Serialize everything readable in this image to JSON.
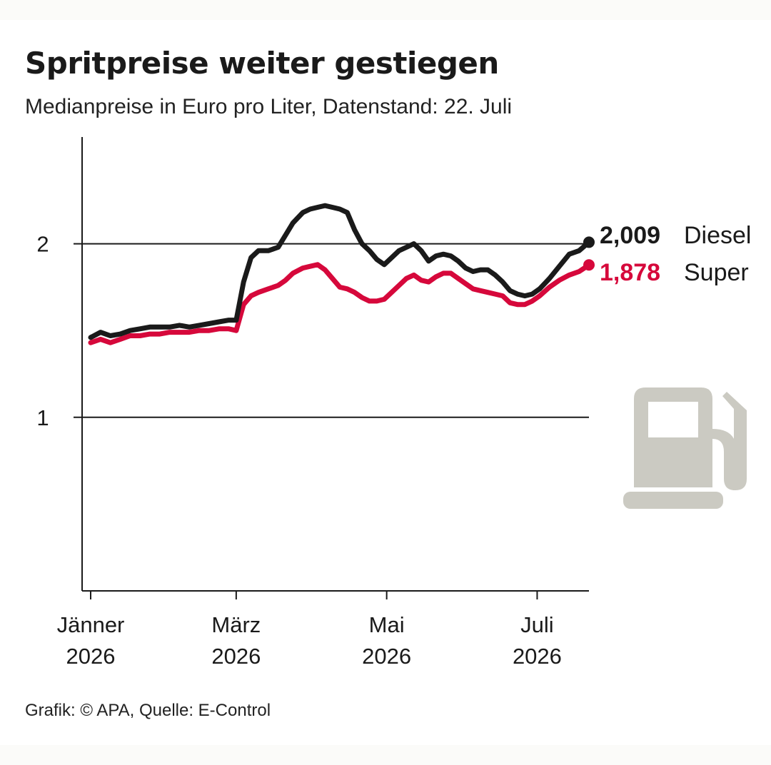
{
  "title": "Spritpreise weiter gestiegen",
  "subtitle": "Medianpreise in Euro pro Liter, Datenstand: 22. Juli",
  "source": "Grafik: © APA, Quelle: E-Control",
  "icon": "fuel-pump-icon",
  "colors": {
    "diesel": "#1a1a1a",
    "super": "#d6083b",
    "icon": "#cbcac2"
  },
  "chart_data": {
    "type": "line",
    "title": "Spritpreise weiter gestiegen",
    "subtitle": "Medianpreise in Euro pro Liter, Datenstand: 22. Juli",
    "ylim": [
      0,
      2.5
    ],
    "yticks": [
      1,
      2
    ],
    "ytick_labels": [
      "1",
      "2"
    ],
    "grid": true,
    "xtick_labels": [
      {
        "line1": "Jänner",
        "line2": "2026",
        "x": 0
      },
      {
        "line1": "März",
        "line2": "2026",
        "x": 59
      },
      {
        "line1": "Mai",
        "line2": "2026",
        "x": 120
      },
      {
        "line1": "Juli",
        "line2": "2026",
        "x": 181
      }
    ],
    "xlim": [
      0,
      202
    ],
    "x_unit": "days since 1 January 2026",
    "series": [
      {
        "name": "Diesel",
        "end_label": "2,009",
        "color": "#1a1a1a",
        "points": [
          [
            0,
            1.46
          ],
          [
            4,
            1.49
          ],
          [
            8,
            1.47
          ],
          [
            12,
            1.48
          ],
          [
            16,
            1.5
          ],
          [
            20,
            1.51
          ],
          [
            24,
            1.52
          ],
          [
            28,
            1.52
          ],
          [
            32,
            1.52
          ],
          [
            36,
            1.53
          ],
          [
            40,
            1.52
          ],
          [
            44,
            1.53
          ],
          [
            48,
            1.54
          ],
          [
            52,
            1.55
          ],
          [
            56,
            1.56
          ],
          [
            59,
            1.56
          ],
          [
            62,
            1.78
          ],
          [
            65,
            1.92
          ],
          [
            68,
            1.96
          ],
          [
            72,
            1.96
          ],
          [
            76,
            1.98
          ],
          [
            79,
            2.05
          ],
          [
            82,
            2.12
          ],
          [
            86,
            2.18
          ],
          [
            89,
            2.2
          ],
          [
            92,
            2.21
          ],
          [
            95,
            2.22
          ],
          [
            98,
            2.21
          ],
          [
            101,
            2.2
          ],
          [
            104,
            2.18
          ],
          [
            107,
            2.08
          ],
          [
            110,
            2.0
          ],
          [
            113,
            1.96
          ],
          [
            116,
            1.91
          ],
          [
            119,
            1.88
          ],
          [
            122,
            1.92
          ],
          [
            125,
            1.96
          ],
          [
            128,
            1.98
          ],
          [
            131,
            2.0
          ],
          [
            134,
            1.96
          ],
          [
            137,
            1.9
          ],
          [
            140,
            1.93
          ],
          [
            143,
            1.94
          ],
          [
            146,
            1.93
          ],
          [
            149,
            1.9
          ],
          [
            152,
            1.86
          ],
          [
            155,
            1.84
          ],
          [
            158,
            1.85
          ],
          [
            161,
            1.85
          ],
          [
            164,
            1.82
          ],
          [
            167,
            1.78
          ],
          [
            170,
            1.73
          ],
          [
            173,
            1.71
          ],
          [
            176,
            1.7
          ],
          [
            179,
            1.71
          ],
          [
            182,
            1.74
          ],
          [
            186,
            1.8
          ],
          [
            190,
            1.87
          ],
          [
            194,
            1.94
          ],
          [
            198,
            1.96
          ],
          [
            202,
            2.009
          ]
        ]
      },
      {
        "name": "Super",
        "end_label": "1,878",
        "color": "#d6083b",
        "points": [
          [
            0,
            1.43
          ],
          [
            4,
            1.45
          ],
          [
            8,
            1.43
          ],
          [
            12,
            1.45
          ],
          [
            16,
            1.47
          ],
          [
            20,
            1.47
          ],
          [
            24,
            1.48
          ],
          [
            28,
            1.48
          ],
          [
            32,
            1.49
          ],
          [
            36,
            1.49
          ],
          [
            40,
            1.49
          ],
          [
            44,
            1.5
          ],
          [
            48,
            1.5
          ],
          [
            52,
            1.51
          ],
          [
            56,
            1.51
          ],
          [
            59,
            1.5
          ],
          [
            62,
            1.65
          ],
          [
            65,
            1.7
          ],
          [
            68,
            1.72
          ],
          [
            72,
            1.74
          ],
          [
            76,
            1.76
          ],
          [
            79,
            1.79
          ],
          [
            82,
            1.83
          ],
          [
            86,
            1.86
          ],
          [
            89,
            1.87
          ],
          [
            92,
            1.88
          ],
          [
            95,
            1.85
          ],
          [
            98,
            1.8
          ],
          [
            101,
            1.75
          ],
          [
            104,
            1.74
          ],
          [
            107,
            1.72
          ],
          [
            110,
            1.69
          ],
          [
            113,
            1.67
          ],
          [
            116,
            1.67
          ],
          [
            119,
            1.68
          ],
          [
            122,
            1.72
          ],
          [
            125,
            1.76
          ],
          [
            128,
            1.8
          ],
          [
            131,
            1.82
          ],
          [
            134,
            1.79
          ],
          [
            137,
            1.78
          ],
          [
            140,
            1.81
          ],
          [
            143,
            1.83
          ],
          [
            146,
            1.83
          ],
          [
            149,
            1.8
          ],
          [
            152,
            1.77
          ],
          [
            155,
            1.74
          ],
          [
            158,
            1.73
          ],
          [
            161,
            1.72
          ],
          [
            164,
            1.71
          ],
          [
            167,
            1.7
          ],
          [
            170,
            1.66
          ],
          [
            173,
            1.65
          ],
          [
            176,
            1.65
          ],
          [
            179,
            1.67
          ],
          [
            182,
            1.7
          ],
          [
            186,
            1.75
          ],
          [
            190,
            1.79
          ],
          [
            194,
            1.82
          ],
          [
            198,
            1.84
          ],
          [
            202,
            1.878
          ]
        ]
      }
    ]
  }
}
